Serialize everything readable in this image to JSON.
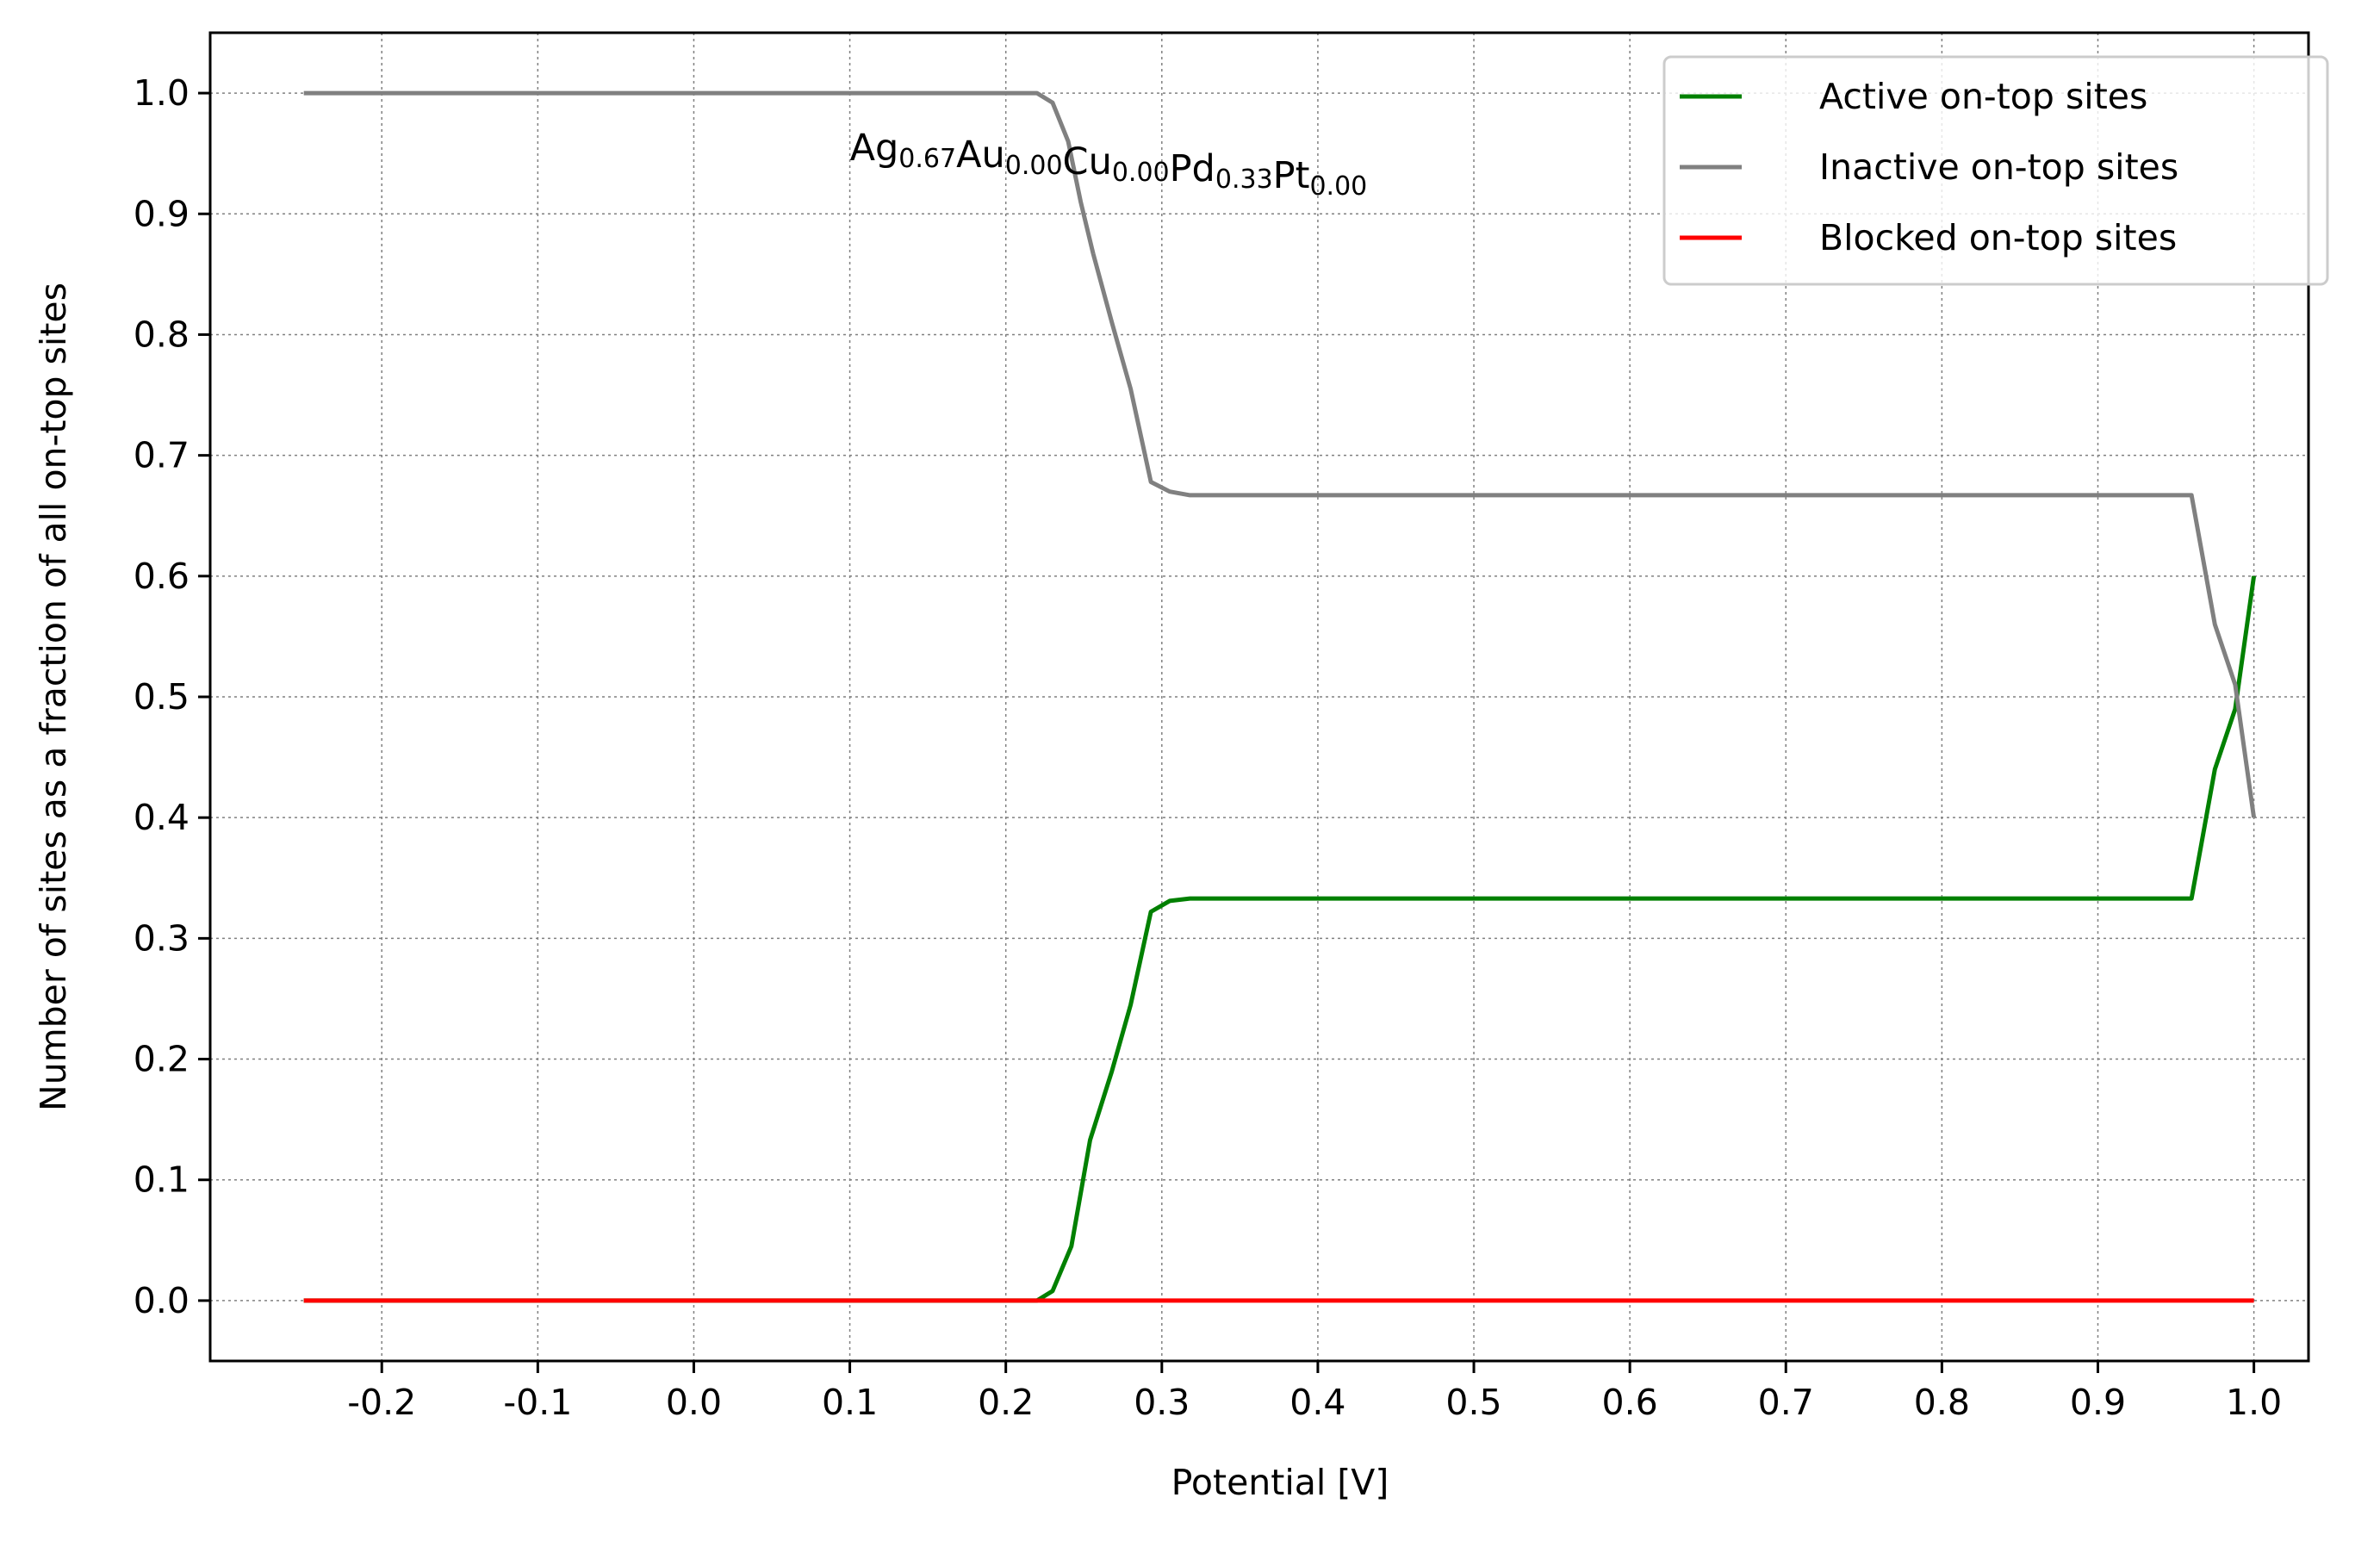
{
  "chart_data": {
    "type": "line",
    "title": "",
    "xlabel": "Potential [V]",
    "ylabel": "Number of sites as a fraction of all on-top sites",
    "xlim": [
      -0.31,
      1.035
    ],
    "ylim": [
      -0.05,
      1.05
    ],
    "xticks": [
      -0.2,
      -0.1,
      0.0,
      0.1,
      0.2,
      0.3,
      0.4,
      0.5,
      0.6,
      0.7,
      0.8,
      0.9,
      1.0
    ],
    "xtick_labels": [
      "-0.2",
      "-0.1",
      "0.0",
      "0.1",
      "0.2",
      "0.3",
      "0.4",
      "0.5",
      "0.6",
      "0.7",
      "0.8",
      "0.9",
      "1.0"
    ],
    "yticks": [
      0.0,
      0.1,
      0.2,
      0.3,
      0.4,
      0.5,
      0.6,
      0.7,
      0.8,
      0.9,
      1.0
    ],
    "ytick_labels": [
      "0.0",
      "0.1",
      "0.2",
      "0.3",
      "0.4",
      "0.5",
      "0.6",
      "0.7",
      "0.8",
      "0.9",
      "1.0"
    ],
    "grid": true,
    "legend_position": "top-right",
    "annotation": {
      "x": 0.1,
      "y": 0.955,
      "parts": [
        {
          "base": "Ag",
          "sub": "0.67"
        },
        {
          "base": "Au",
          "sub": "0.00"
        },
        {
          "base": "Cu",
          "sub": "0.00"
        },
        {
          "base": "Pd",
          "sub": "0.33"
        },
        {
          "base": "Pt",
          "sub": "0.00"
        }
      ]
    },
    "series": [
      {
        "name": "Active on-top sites",
        "color": "#008000",
        "x": [
          -0.25,
          0.2,
          0.22,
          0.23,
          0.242,
          0.254,
          0.268,
          0.28,
          0.293,
          0.305,
          0.318,
          0.5,
          0.96,
          0.975,
          0.988,
          1.0
        ],
        "y": [
          0.0,
          0.0,
          0.0,
          0.008,
          0.045,
          0.133,
          0.19,
          0.245,
          0.322,
          0.331,
          0.333,
          0.333,
          0.333,
          0.44,
          0.49,
          0.6
        ]
      },
      {
        "name": "Inactive on-top sites",
        "color": "#808080",
        "x": [
          -0.25,
          0.2,
          0.22,
          0.23,
          0.24,
          0.248,
          0.256,
          0.268,
          0.28,
          0.293,
          0.305,
          0.318,
          0.5,
          0.96,
          0.975,
          0.988,
          1.0
        ],
        "y": [
          1.0,
          1.0,
          1.0,
          0.992,
          0.96,
          0.91,
          0.867,
          0.81,
          0.755,
          0.678,
          0.67,
          0.667,
          0.667,
          0.667,
          0.56,
          0.51,
          0.4
        ]
      },
      {
        "name": "Blocked on-top sites",
        "color": "#ff0000",
        "x": [
          -0.25,
          1.0
        ],
        "y": [
          0.0,
          0.0
        ]
      }
    ]
  }
}
